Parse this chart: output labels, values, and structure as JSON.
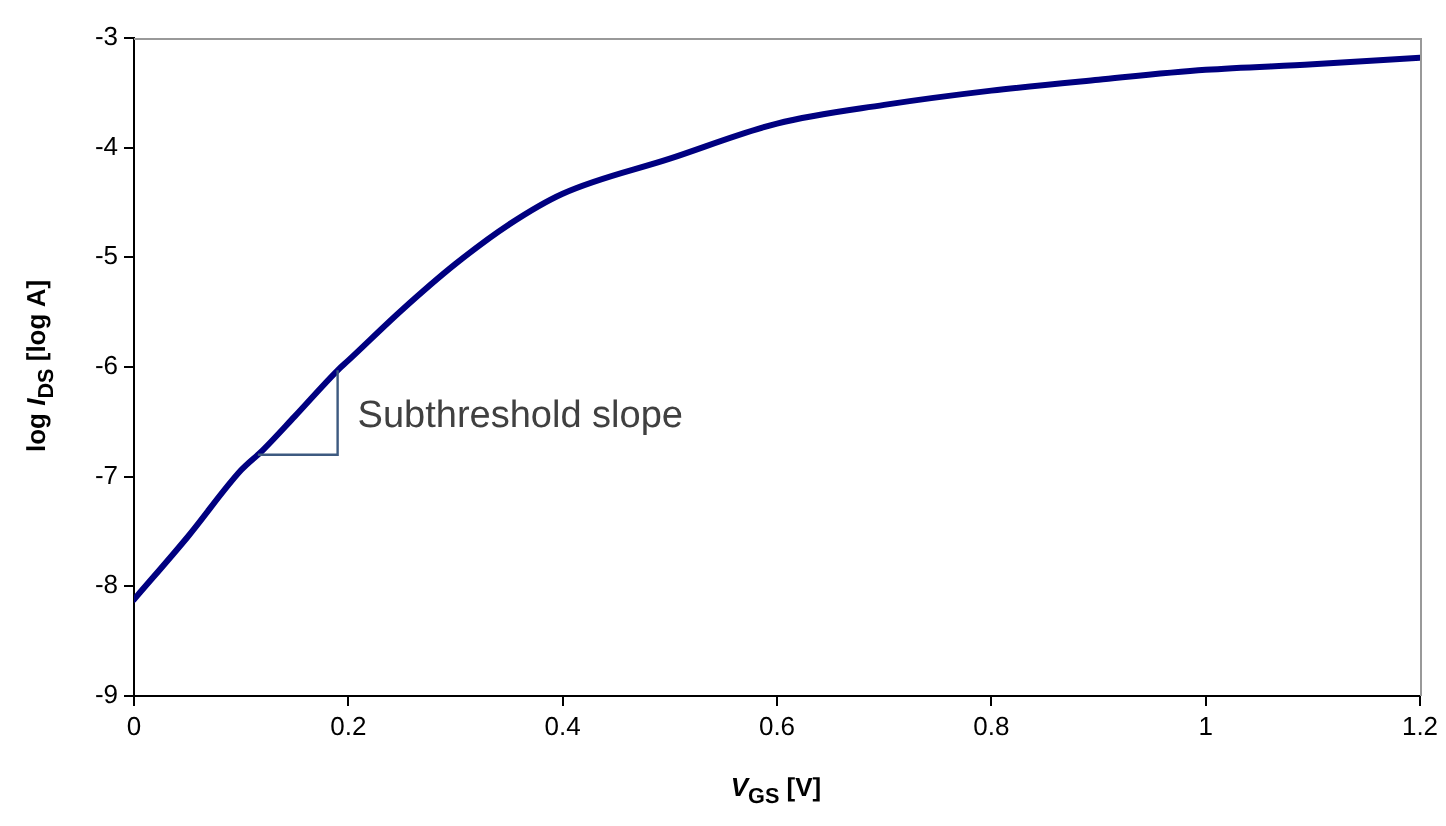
{
  "chart_data": {
    "type": "line",
    "xlabel": "V$_{GS}$ [V]",
    "ylabel": "log I$_{DS}$ [log A]",
    "x": [
      0,
      0.05,
      0.1,
      0.12,
      0.15,
      0.19,
      0.2,
      0.25,
      0.3,
      0.35,
      0.4,
      0.5,
      0.6,
      0.7,
      0.8,
      0.9,
      1.0,
      1.1,
      1.2
    ],
    "series": [
      {
        "color": "#000080",
        "values": [
          -8.12,
          -7.55,
          -6.94,
          -6.76,
          -6.45,
          -6.03,
          -5.94,
          -5.48,
          -5.06,
          -4.7,
          -4.42,
          -4.1,
          -3.78,
          -3.61,
          -3.48,
          -3.38,
          -3.29,
          -3.24,
          -3.18
        ]
      }
    ],
    "xlim": [
      0,
      1.2
    ],
    "xticks": [
      0,
      0.2,
      0.4,
      0.6,
      0.8,
      1,
      1.2
    ],
    "ylim": [
      -9,
      -3
    ],
    "yticks": [
      -9,
      -8,
      -7,
      -6,
      -5,
      -4,
      -3
    ],
    "annotations": [
      {
        "text": "Subthreshold slope",
        "x": 0.19,
        "y": -6.03
      }
    ],
    "grid": false,
    "legend": false,
    "marker": "none",
    "line_style": "solid"
  }
}
